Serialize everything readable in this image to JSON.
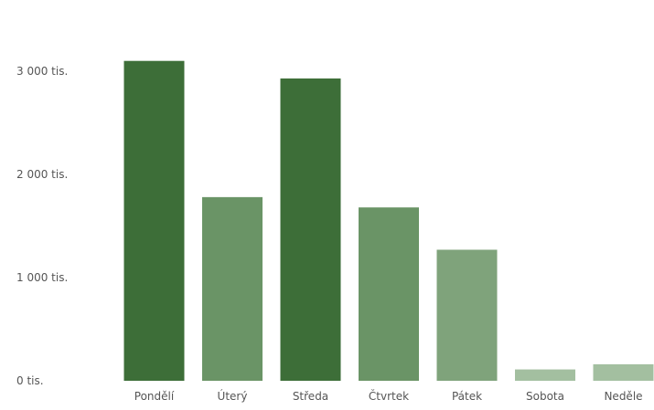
{
  "chart_data": {
    "type": "bar",
    "title": "",
    "xlabel": "",
    "ylabel": "",
    "categories": [
      "Pondělí",
      "Úterý",
      "Středa",
      "Čtvrtek",
      "Pátek",
      "Sobota",
      "Neděle"
    ],
    "values": [
      3100,
      1780,
      2930,
      1680,
      1270,
      110,
      160
    ],
    "ylim": [
      0,
      3000
    ],
    "yticks": [
      {
        "value": 0,
        "label": "0 tis."
      },
      {
        "value": 1000,
        "label": "1 000 tis."
      },
      {
        "value": 2000,
        "label": "2 000 tis."
      },
      {
        "value": 3000,
        "label": "3 000 tis."
      }
    ],
    "grid": false,
    "colors": {
      "highlight": "#3d6e38",
      "mid": "#6a9466",
      "light": "#7fa37b",
      "faint": "#a3bfa0"
    },
    "bar_colors": [
      "#3d6e38",
      "#6a9466",
      "#3d6e38",
      "#6a9466",
      "#7fa37b",
      "#a3bfa0",
      "#a3bfa0"
    ]
  }
}
